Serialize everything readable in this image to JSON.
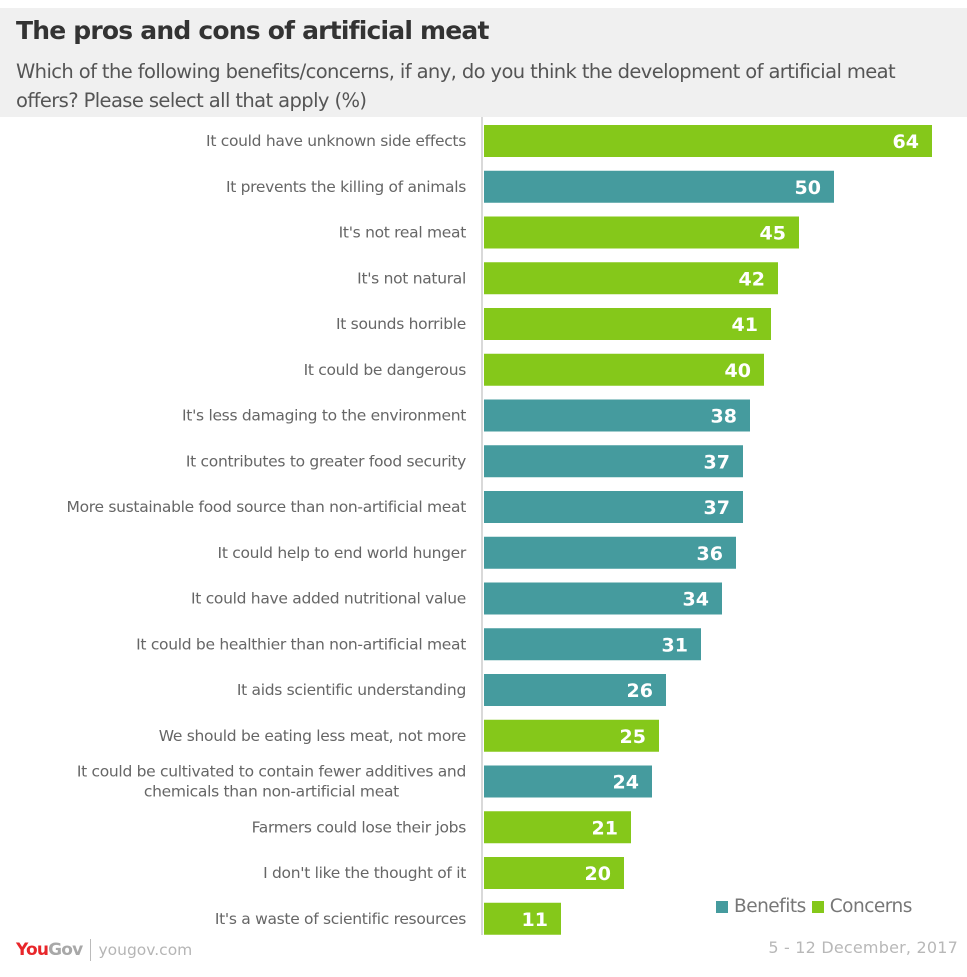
{
  "header": {
    "title": "The pros and cons of artificial meat",
    "subtitle": "Which of the following benefits/concerns, if any, do you think the development of artificial meat offers? Please select all that apply (%)"
  },
  "colors": {
    "benefits": "#459b9e",
    "concerns": "#85c81a",
    "axis": "#d9d9d9",
    "header_bg": "#f0f0f0",
    "brand_red": "#e8262a"
  },
  "legend": {
    "items": [
      {
        "label": "Benefits",
        "series": "benefits"
      },
      {
        "label": "Concerns",
        "series": "concerns"
      }
    ]
  },
  "footer": {
    "logo_you": "You",
    "logo_gov": "Gov",
    "url": "yougov.com",
    "date": "5 - 12 December, 2017"
  },
  "chart_data": {
    "type": "bar",
    "orientation": "horizontal",
    "title": "The pros and cons of artificial meat",
    "subtitle": "Which of the following benefits/concerns, if any, do you think the development of artificial meat offers? Please select all that apply (%)",
    "xlabel": "",
    "ylabel": "",
    "xlim": [
      0,
      64
    ],
    "grid": false,
    "legend_position": "bottom-right",
    "categories": [
      "It could have unknown side effects",
      "It prevents the killing of animals",
      "It's not real meat",
      "It's not natural",
      "It sounds horrible",
      "It could be dangerous",
      "It's less damaging to the environment",
      "It contributes to greater food security",
      "More sustainable food source than non-artificial meat",
      "It could help to end world hunger",
      "It could have added nutritional value",
      "It could be healthier than non-artificial meat",
      "It aids scientific understanding",
      "We should be eating less meat, not more",
      "It could be cultivated to contain fewer additives and chemicals than non-artificial meat",
      "Farmers could lose their jobs",
      "I don't like the thought of it",
      "It's a waste of scientific resources"
    ],
    "category_lines": [
      [
        "It could have unknown side effects"
      ],
      [
        "It prevents the killing of animals"
      ],
      [
        "It's not real meat"
      ],
      [
        "It's not natural"
      ],
      [
        "It sounds horrible"
      ],
      [
        "It could be dangerous"
      ],
      [
        "It's less damaging to the environment"
      ],
      [
        "It contributes to greater food security"
      ],
      [
        "More sustainable food source than non-artificial meat"
      ],
      [
        "It could help to end world hunger"
      ],
      [
        "It could have added nutritional value"
      ],
      [
        "It could be healthier than non-artificial meat"
      ],
      [
        "It aids scientific understanding"
      ],
      [
        "We should be eating less meat, not more"
      ],
      [
        "It could be cultivated to contain fewer additives and",
        "chemicals than non-artificial meat"
      ],
      [
        "Farmers could lose their jobs"
      ],
      [
        "I don't like the thought of it"
      ],
      [
        "It's a waste of scientific resources"
      ]
    ],
    "values": [
      64,
      50,
      45,
      42,
      41,
      40,
      38,
      37,
      37,
      36,
      34,
      31,
      26,
      25,
      24,
      21,
      20,
      11
    ],
    "series_type": [
      "concerns",
      "benefits",
      "concerns",
      "concerns",
      "concerns",
      "concerns",
      "benefits",
      "benefits",
      "benefits",
      "benefits",
      "benefits",
      "benefits",
      "benefits",
      "concerns",
      "benefits",
      "concerns",
      "concerns",
      "concerns"
    ],
    "series": [
      {
        "name": "Benefits",
        "key": "benefits"
      },
      {
        "name": "Concerns",
        "key": "concerns"
      }
    ]
  }
}
